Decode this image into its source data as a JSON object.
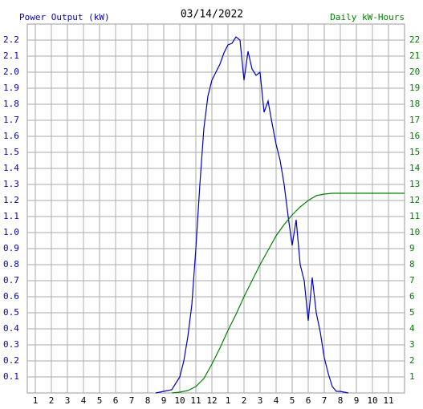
{
  "chart_data": {
    "type": "line",
    "title": "03/14/2022",
    "ylabel": "Power Output (kW)",
    "y2label": "Daily kW-Hours",
    "xlim": [
      0.5,
      24
    ],
    "xticks": [
      1,
      2,
      3,
      4,
      5,
      6,
      7,
      8,
      9,
      10,
      11,
      12,
      {
        "value": 13,
        "label": "1"
      },
      {
        "value": 14,
        "label": "2"
      },
      {
        "value": 15,
        "label": "3"
      },
      {
        "value": 16,
        "label": "4"
      },
      {
        "value": 17,
        "label": "5"
      },
      {
        "value": 18,
        "label": "6"
      },
      {
        "value": 19,
        "label": "7"
      },
      {
        "value": 20,
        "label": "8"
      },
      {
        "value": 21,
        "label": "9"
      },
      {
        "value": 22,
        "label": "10"
      },
      {
        "value": 23,
        "label": "11"
      }
    ],
    "ylim": [
      0,
      2.3
    ],
    "yticks": [
      0.1,
      0.2,
      0.3,
      0.4,
      0.5,
      0.6,
      0.7,
      0.8,
      0.9,
      {
        "value": 1,
        "label": "1.0"
      },
      1.1,
      1.2,
      1.3,
      1.4,
      1.5,
      1.6,
      1.7,
      1.8,
      1.9,
      {
        "value": 2,
        "label": "2.0"
      },
      2.1,
      2.2
    ],
    "y2lim": [
      0,
      23
    ],
    "y2ticks": [
      1,
      2,
      3,
      4,
      5,
      6,
      7,
      8,
      9,
      10,
      11,
      12,
      13,
      14,
      15,
      16,
      17,
      18,
      19,
      20,
      21,
      22
    ],
    "grid": true,
    "series": [
      {
        "color": "#0000c0",
        "axis": "y",
        "x": [
          8.5,
          9,
          9.5,
          10,
          10.25,
          10.5,
          10.75,
          11,
          11.25,
          11.5,
          11.75,
          12,
          12.25,
          12.5,
          12.75,
          13,
          13.25,
          13.5,
          13.75,
          14,
          14.25,
          14.5,
          14.75,
          15,
          15.25,
          15.5,
          15.75,
          16,
          16.25,
          16.5,
          16.75,
          17,
          17.25,
          17.5,
          17.75,
          18,
          18.25,
          18.5,
          18.75,
          19,
          19.25,
          19.5,
          19.75,
          20,
          20.5
        ],
        "values": [
          0,
          0.01,
          0.02,
          0.1,
          0.2,
          0.35,
          0.55,
          0.9,
          1.3,
          1.65,
          1.85,
          1.95,
          2.0,
          2.05,
          2.12,
          2.17,
          2.18,
          2.22,
          2.2,
          1.95,
          2.13,
          2.02,
          1.98,
          2.0,
          1.75,
          1.82,
          1.68,
          1.55,
          1.45,
          1.3,
          1.1,
          0.92,
          1.08,
          0.8,
          0.7,
          0.45,
          0.72,
          0.5,
          0.38,
          0.22,
          0.12,
          0.04,
          0.01,
          0.01,
          0
        ]
      },
      {
        "color": "#008000",
        "axis": "y2",
        "x": [
          9.5,
          10,
          10.5,
          11,
          11.5,
          12,
          12.5,
          13,
          13.5,
          14,
          14.5,
          15,
          15.5,
          16,
          16.5,
          17,
          17.5,
          18,
          18.5,
          19,
          19.5,
          24
        ],
        "values": [
          0,
          0.05,
          0.15,
          0.4,
          0.9,
          1.8,
          2.8,
          3.9,
          4.9,
          6.0,
          7.0,
          8.0,
          8.9,
          9.8,
          10.5,
          11.1,
          11.6,
          12.0,
          12.3,
          12.4,
          12.45,
          12.45
        ]
      }
    ]
  }
}
